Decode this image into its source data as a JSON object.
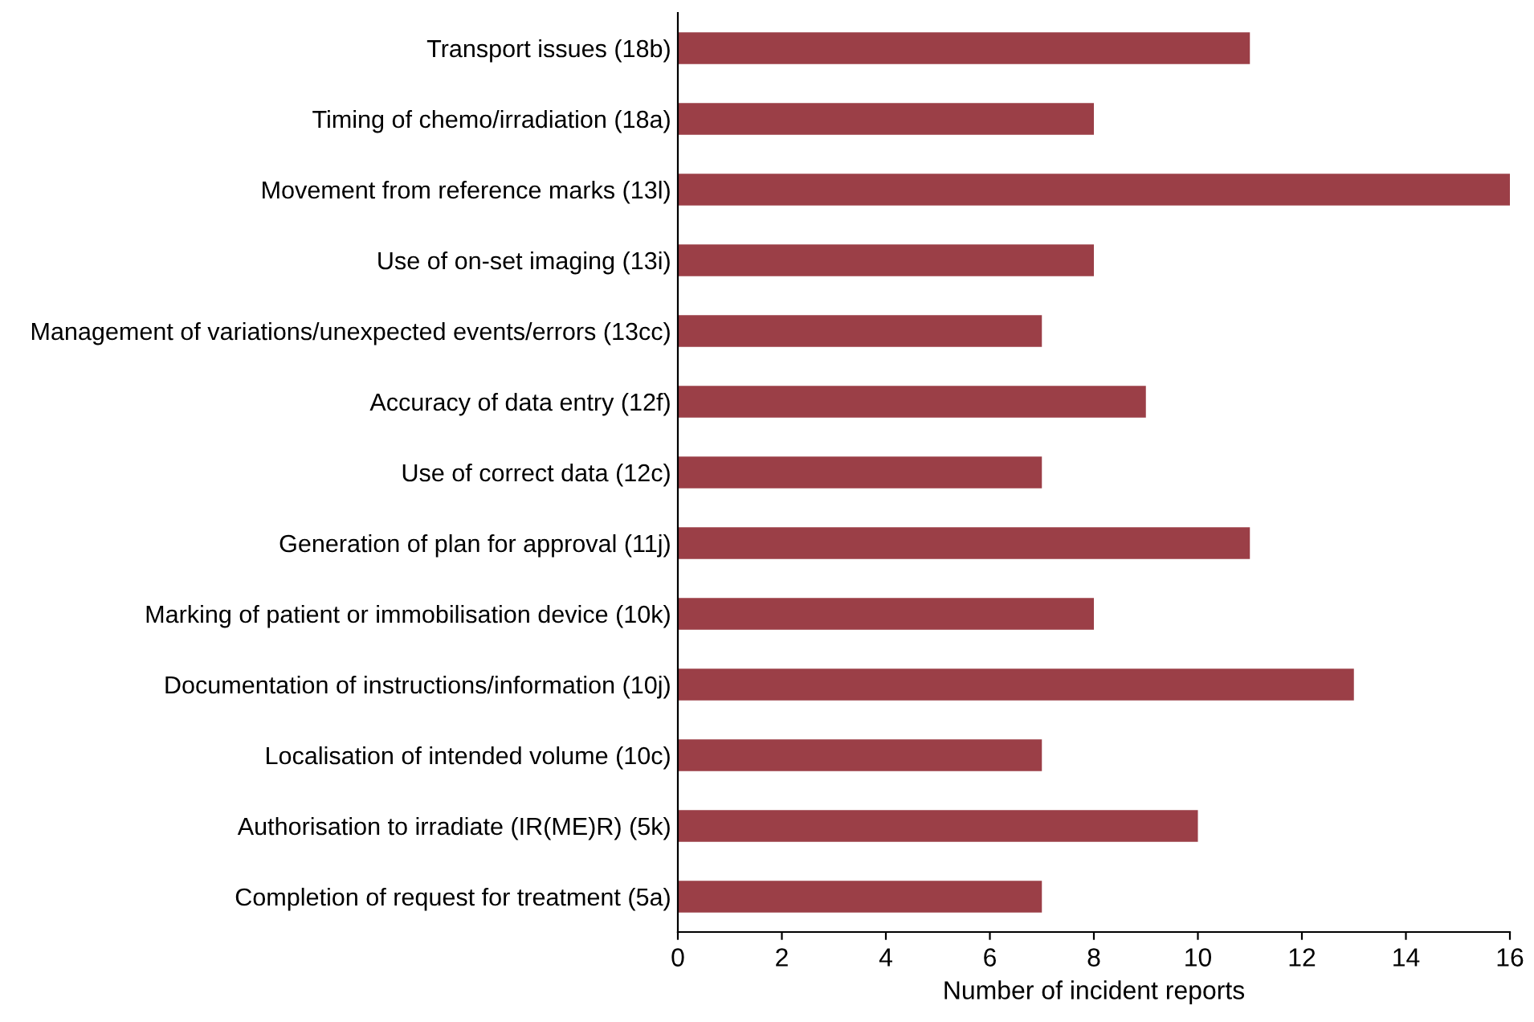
{
  "chart_data": {
    "type": "bar",
    "orientation": "horizontal",
    "xlabel": "Number of incident reports",
    "categories": [
      "Transport issues (18b)",
      "Timing of chemo/irradiation (18a)",
      "Movement from reference marks (13l)",
      "Use of on-set imaging (13i)",
      "Management of variations/unexpected events/errors (13cc)",
      "Accuracy of data entry (12f)",
      "Use of correct data (12c)",
      "Generation of plan for approval (11j)",
      "Marking of patient or immobilisation device (10k)",
      "Documentation of instructions/information (10j)",
      "Localisation of intended volume (10c)",
      "Authorisation to irradiate (IR(ME)R) (5k)",
      "Completion of request for treatment (5a)"
    ],
    "values": [
      11,
      8,
      16,
      8,
      7,
      9,
      7,
      11,
      8,
      13,
      7,
      10,
      7
    ],
    "color": "#9b3f47",
    "xlim": [
      0,
      16
    ],
    "xticks": [
      0,
      2,
      4,
      6,
      8,
      10,
      12,
      14,
      16
    ],
    "grid": false,
    "legend": false
  }
}
